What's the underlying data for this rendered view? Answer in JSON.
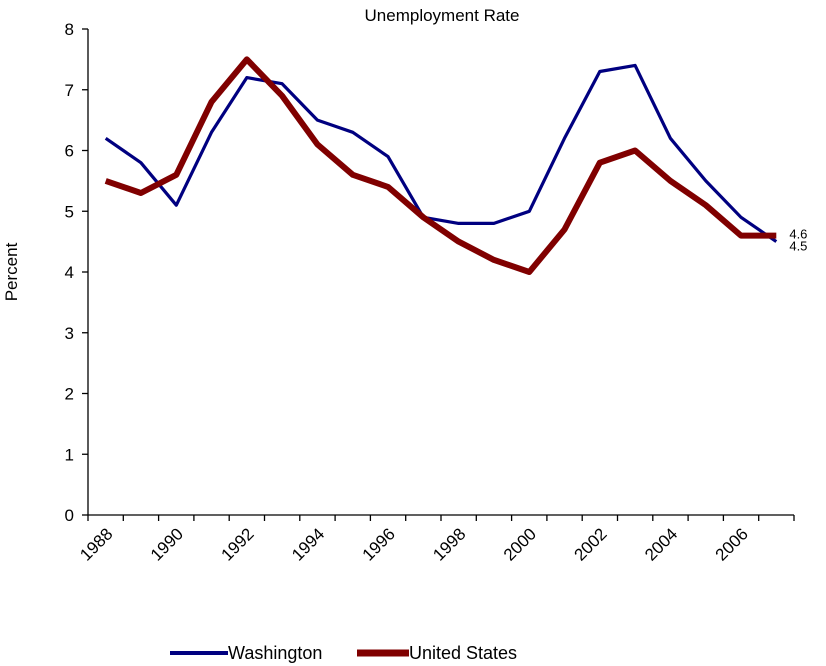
{
  "chart_data": {
    "type": "line",
    "title": "Unemployment Rate",
    "xlabel": "",
    "ylabel": "Percent",
    "ylim": [
      0,
      8
    ],
    "yticks": [
      0,
      1,
      2,
      3,
      4,
      5,
      6,
      7,
      8
    ],
    "x": [
      1988,
      1989,
      1990,
      1991,
      1992,
      1993,
      1994,
      1995,
      1996,
      1997,
      1998,
      1999,
      2000,
      2001,
      2002,
      2003,
      2004,
      2005,
      2006,
      2007
    ],
    "x_tick_labels": [
      "1988",
      "1990",
      "1992",
      "1994",
      "1996",
      "1998",
      "2000",
      "2002",
      "2004",
      "2006"
    ],
    "grid": false,
    "legend_position": "bottom",
    "series": [
      {
        "name": "Washington",
        "color": "#000080",
        "values": [
          6.2,
          5.8,
          5.1,
          6.3,
          7.2,
          7.1,
          6.5,
          6.3,
          5.9,
          4.9,
          4.8,
          4.8,
          5.0,
          6.2,
          7.3,
          7.4,
          6.2,
          5.5,
          4.9,
          4.5
        ],
        "end_label": "4.5"
      },
      {
        "name": "United States",
        "color": "#800000",
        "values": [
          5.5,
          5.3,
          5.6,
          6.8,
          7.5,
          6.9,
          6.1,
          5.6,
          5.4,
          4.9,
          4.5,
          4.2,
          4.0,
          4.7,
          5.8,
          6.0,
          5.5,
          5.1,
          4.6,
          4.6
        ],
        "end_label": "4.6"
      }
    ]
  }
}
